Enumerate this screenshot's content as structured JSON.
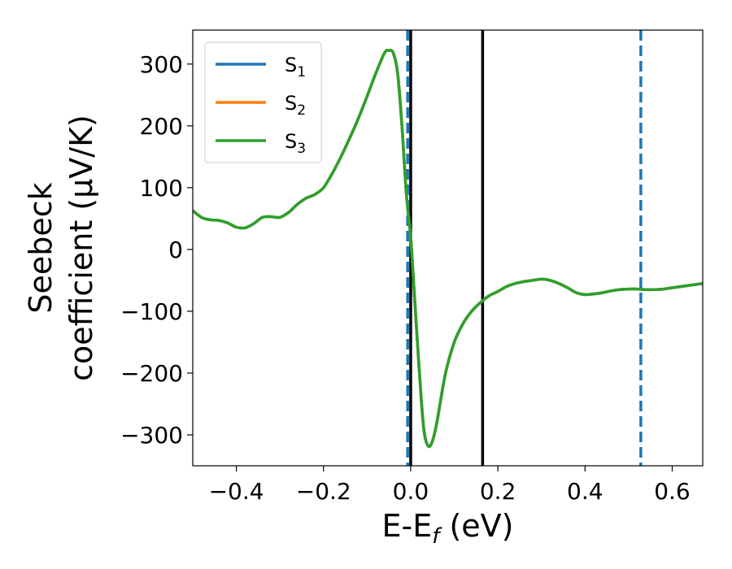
{
  "chart_data": {
    "type": "line",
    "xlabel_main": "E-E",
    "xlabel_sub": "f",
    "xlabel_unit": " (eV)",
    "ylabel_line1": "Seebeck",
    "ylabel_line2": "coefficient  (μV/K)",
    "xlim": [
      -0.5,
      0.67
    ],
    "ylim": [
      -350,
      355
    ],
    "xticks": [
      -0.4,
      -0.2,
      0.0,
      0.2,
      0.4,
      0.6
    ],
    "xtick_labels": [
      "−0.4",
      "−0.2",
      "0.0",
      "0.2",
      "0.4",
      "0.6"
    ],
    "yticks": [
      -300,
      -200,
      -100,
      0,
      100,
      200,
      300
    ],
    "ytick_labels": [
      "−300",
      "−200",
      "−100",
      "0",
      "100",
      "200",
      "300"
    ],
    "legend_position": "top-left",
    "x": [
      -0.5,
      -0.48,
      -0.46,
      -0.44,
      -0.42,
      -0.4,
      -0.38,
      -0.36,
      -0.34,
      -0.32,
      -0.3,
      -0.28,
      -0.26,
      -0.24,
      -0.22,
      -0.2,
      -0.18,
      -0.16,
      -0.14,
      -0.12,
      -0.1,
      -0.08,
      -0.06,
      -0.05,
      -0.04,
      -0.03,
      -0.02,
      -0.01,
      0.0,
      0.01,
      0.02,
      0.03,
      0.04,
      0.05,
      0.06,
      0.08,
      0.1,
      0.12,
      0.14,
      0.16,
      0.18,
      0.2,
      0.22,
      0.24,
      0.26,
      0.28,
      0.3,
      0.32,
      0.34,
      0.36,
      0.38,
      0.4,
      0.42,
      0.44,
      0.46,
      0.48,
      0.5,
      0.52,
      0.54,
      0.56,
      0.58,
      0.6,
      0.62,
      0.64,
      0.67
    ],
    "series": [
      {
        "name_main": "S",
        "name_sub": "1",
        "color": "#1f77b4",
        "y": [
          63,
          52,
          48,
          47,
          43,
          36,
          35,
          42,
          52,
          53,
          52,
          60,
          73,
          83,
          89,
          100,
          123,
          150,
          180,
          212,
          248,
          285,
          318,
          322,
          318,
          285,
          200,
          90,
          20,
          -90,
          -200,
          -290,
          -318,
          -310,
          -280,
          -200,
          -150,
          -120,
          -100,
          -86,
          -75,
          -68,
          -60,
          -55,
          -52,
          -50,
          -48,
          -50,
          -55,
          -62,
          -70,
          -73,
          -72,
          -70,
          -67,
          -65,
          -64,
          -64,
          -65,
          -65,
          -64,
          -62,
          -60,
          -58,
          -55
        ]
      },
      {
        "name_main": "S",
        "name_sub": "2",
        "color": "#ff7f0e",
        "y": [
          63,
          52,
          48,
          47,
          43,
          36,
          35,
          42,
          52,
          53,
          52,
          60,
          73,
          83,
          89,
          100,
          123,
          150,
          180,
          212,
          248,
          285,
          318,
          322,
          318,
          285,
          200,
          90,
          20,
          -90,
          -200,
          -290,
          -318,
          -310,
          -280,
          -200,
          -150,
          -120,
          -100,
          -86,
          -75,
          -68,
          -60,
          -55,
          -52,
          -50,
          -48,
          -50,
          -55,
          -62,
          -70,
          -73,
          -72,
          -70,
          -67,
          -65,
          -64,
          -64,
          -65,
          -65,
          -64,
          -62,
          -60,
          -58,
          -55
        ]
      },
      {
        "name_main": "S",
        "name_sub": "3",
        "color": "#2ca02c",
        "y": [
          63,
          52,
          48,
          47,
          43,
          36,
          35,
          42,
          52,
          53,
          52,
          60,
          73,
          83,
          89,
          100,
          123,
          150,
          180,
          212,
          248,
          285,
          318,
          322,
          318,
          285,
          200,
          90,
          20,
          -90,
          -200,
          -290,
          -318,
          -310,
          -280,
          -200,
          -150,
          -120,
          -100,
          -86,
          -75,
          -68,
          -60,
          -55,
          -52,
          -50,
          -48,
          -50,
          -55,
          -62,
          -70,
          -73,
          -72,
          -70,
          -67,
          -65,
          -64,
          -64,
          -65,
          -65,
          -64,
          -62,
          -60,
          -58,
          -55
        ]
      }
    ],
    "vlines": [
      {
        "x": -0.007,
        "style": "dashed",
        "color": "#1f77b4"
      },
      {
        "x": 0.0,
        "style": "dotted",
        "color": "#000000"
      },
      {
        "x": 0.0,
        "style": "solid",
        "color": "#000000"
      },
      {
        "x": 0.165,
        "style": "solid",
        "color": "#000000"
      },
      {
        "x": 0.528,
        "style": "dashed",
        "color": "#1f77b4"
      }
    ]
  }
}
